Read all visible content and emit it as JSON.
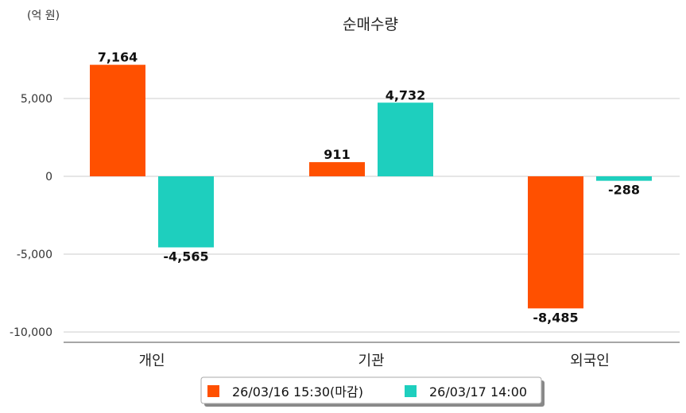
{
  "chart_data": {
    "type": "bar",
    "title": "순매수량",
    "unit_label": "(억 원)",
    "categories": [
      "개인",
      "기관",
      "외국인"
    ],
    "series": [
      {
        "name": "26/03/16 15:30(마감)",
        "color": "#ff5000",
        "values": [
          7164,
          911,
          -8485
        ],
        "labels": [
          "7,164",
          "911",
          "-8,485"
        ]
      },
      {
        "name": "26/03/17 14:00",
        "color": "#1ecfbe",
        "values": [
          -4565,
          4732,
          -288
        ],
        "labels": [
          "-4,565",
          "4,732",
          "-288"
        ]
      }
    ],
    "ylim": [
      -10000,
      10000
    ],
    "yticks": [
      5000,
      0,
      -5000,
      -10000
    ],
    "ytick_labels": [
      "5,000",
      "0",
      "-5,000",
      "-10,000"
    ],
    "grid": true,
    "legend_position": "bottom"
  }
}
